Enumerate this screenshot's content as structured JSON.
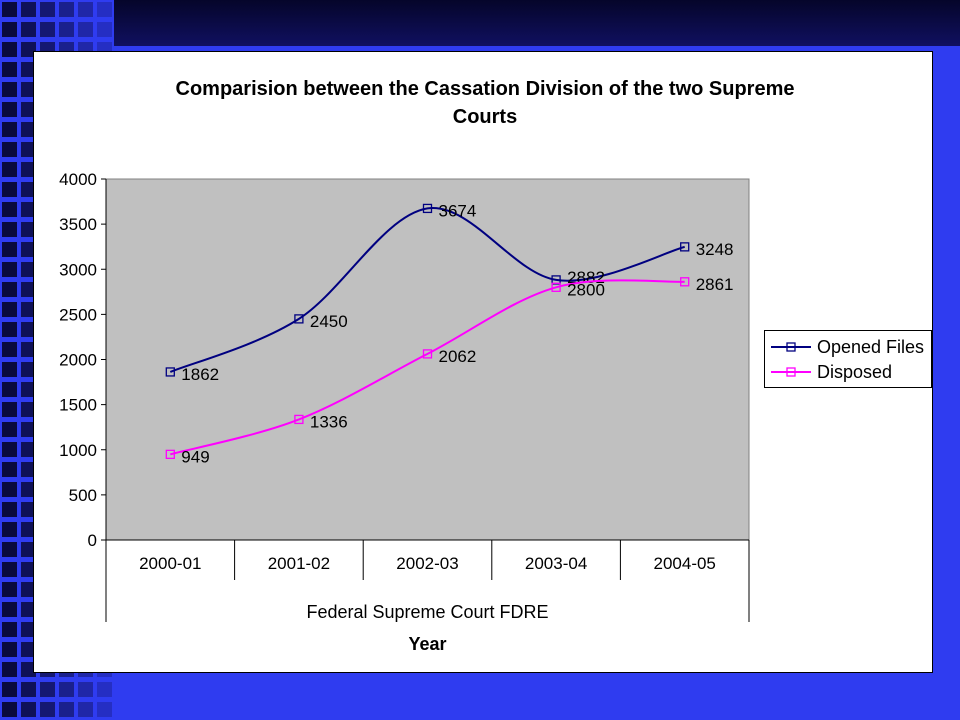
{
  "colors": {
    "background": "#2f3cf0",
    "plot_area": "#c0c0c0",
    "opened_files": "#000080",
    "disposed": "#ff00ff"
  },
  "chart_data": {
    "type": "line",
    "title": "Comparision between the Cassation Division of the two Supreme Courts",
    "categories": [
      "2000-01",
      "2001-02",
      "2002-03",
      "2003-04",
      "2004-05"
    ],
    "group_label": "Federal Supreme Court FDRE",
    "xlabel": "Year",
    "ylabel": "",
    "ylim": [
      0,
      4000
    ],
    "yticks": [
      "0",
      "500",
      "1000",
      "1500",
      "2000",
      "2500",
      "3000",
      "3500",
      "4000"
    ],
    "grid": false,
    "legend": "right",
    "series": [
      {
        "name": "Opened Files",
        "values": [
          1862,
          2450,
          3674,
          2882,
          3248
        ],
        "color": "#000080"
      },
      {
        "name": "Disposed",
        "values": [
          949,
          1336,
          2062,
          2800,
          2861
        ],
        "color": "#ff00ff"
      }
    ]
  }
}
